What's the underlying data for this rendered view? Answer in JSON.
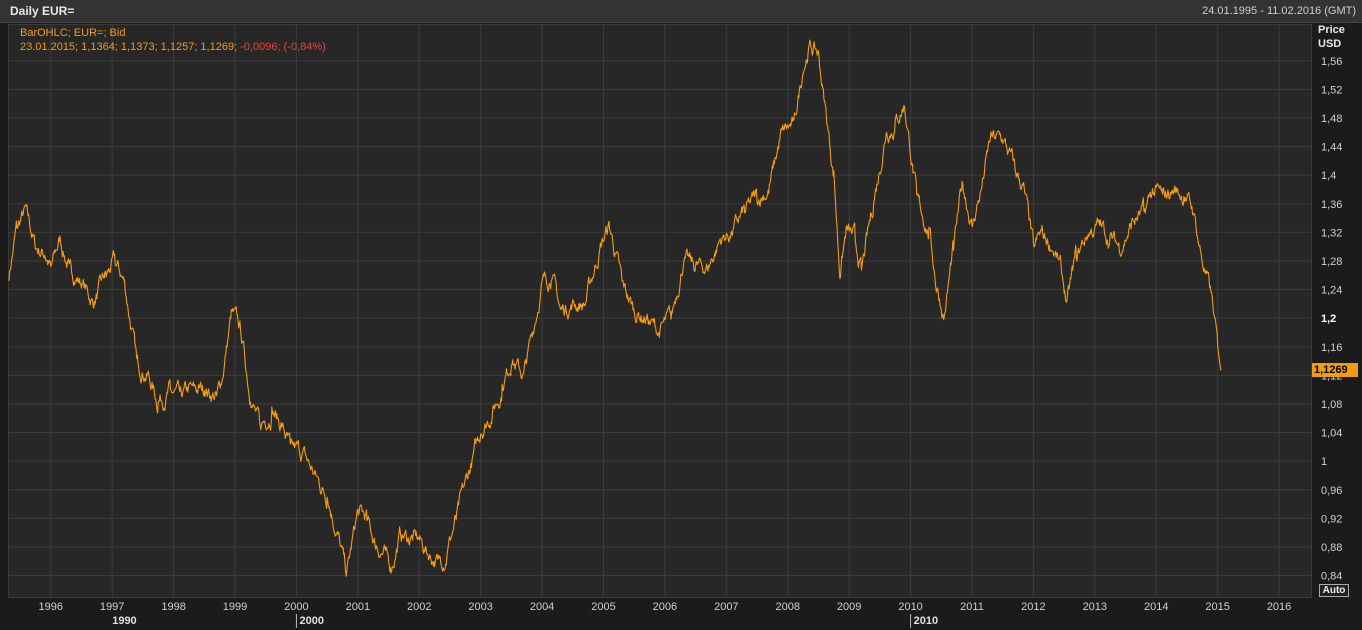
{
  "window": {
    "title": "Daily EUR=",
    "date_range": "24.01.1995 - 11.02.2016 (GMT)"
  },
  "legend": {
    "series_label": "BarOHLC; EUR=; Bid",
    "ohlc_values": "23.01.2015; 1,1364; 1,1373; 1,1257; 1,1269;",
    "change_values": "-0,0096; (-0,84%)"
  },
  "axis": {
    "y_title": "Price",
    "y_unit": "USD",
    "last_value": "1,1269",
    "auto_label": "Auto"
  },
  "colors": {
    "series": "#f39c12",
    "change_negative": "#e8453c",
    "background": "#1b1b1b",
    "plot_background": "#272727",
    "grid": "#3c3c3c"
  },
  "chart_data": {
    "type": "line",
    "title": "Daily EUR=",
    "ylabel": "Price USD",
    "ylim": [
      0.81,
      1.61
    ],
    "xlim": [
      1995.32,
      2016.52
    ],
    "grid": true,
    "y_ticks": [
      0.84,
      0.88,
      0.92,
      0.96,
      1.0,
      1.04,
      1.08,
      1.12,
      1.16,
      1.2,
      1.24,
      1.28,
      1.32,
      1.36,
      1.4,
      1.44,
      1.48,
      1.52,
      1.56
    ],
    "y_tick_labels": [
      "0,84",
      "0,88",
      "0,92",
      "0,96",
      "1",
      "1,04",
      "1,08",
      "1,12",
      "1,16",
      "1,2",
      "1,24",
      "1,28",
      "1,32",
      "1,36",
      "1,4",
      "1,44",
      "1,48",
      "1,52",
      "1,56"
    ],
    "x_ticks": [
      1996,
      1997,
      1998,
      1999,
      2000,
      2001,
      2002,
      2003,
      2004,
      2005,
      2006,
      2007,
      2008,
      2009,
      2010,
      2011,
      2012,
      2013,
      2014,
      2015,
      2016
    ],
    "x_tick_labels": [
      "1996",
      "1997",
      "1998",
      "1999",
      "2000",
      "2001",
      "2002",
      "2003",
      "2004",
      "2005",
      "2006",
      "2007",
      "2008",
      "2009",
      "2010",
      "2011",
      "2012",
      "2013",
      "2014",
      "2015",
      "2016"
    ],
    "decade_ticks": [
      1990,
      2000,
      2010
    ],
    "decade_labels": [
      "1990",
      "2000",
      "2010"
    ],
    "series": [
      {
        "x": [
          1995.32,
          1995.45,
          1995.6,
          1995.75,
          1995.9,
          1996.0,
          1996.15,
          1996.3,
          1996.5,
          1996.7,
          1996.9,
          1997.05,
          1997.2,
          1997.4,
          1997.6,
          1997.75,
          1997.95,
          1998.1,
          1998.3,
          1998.5,
          1998.7,
          1998.8,
          1998.95,
          1999.1,
          1999.25,
          1999.4,
          1999.6,
          1999.75,
          1999.9,
          2000.1,
          2000.3,
          2000.5,
          2000.7,
          2000.82,
          2001.0,
          2001.15,
          2001.3,
          2001.45,
          2001.55,
          2001.7,
          2001.85,
          2002.0,
          2002.15,
          2002.3,
          2002.45,
          2002.6,
          2002.8,
          2003.0,
          2003.2,
          2003.35,
          2003.5,
          2003.7,
          2003.85,
          2004.0,
          2004.15,
          2004.3,
          2004.5,
          2004.7,
          2004.95,
          2005.1,
          2005.3,
          2005.5,
          2005.7,
          2005.9,
          2006.1,
          2006.3,
          2006.5,
          2006.7,
          2006.9,
          2007.1,
          2007.3,
          2007.5,
          2007.7,
          2007.9,
          2008.1,
          2008.25,
          2008.35,
          2008.5,
          2008.6,
          2008.75,
          2008.85,
          2008.95,
          2009.1,
          2009.2,
          2009.4,
          2009.6,
          2009.75,
          2009.9,
          2010.1,
          2010.3,
          2010.43,
          2010.55,
          2010.7,
          2010.85,
          2011.0,
          2011.15,
          2011.3,
          2011.5,
          2011.7,
          2011.85,
          2012.0,
          2012.15,
          2012.3,
          2012.45,
          2012.55,
          2012.7,
          2012.9,
          2013.1,
          2013.25,
          2013.4,
          2013.6,
          2013.8,
          2013.95,
          2014.1,
          2014.3,
          2014.45,
          2014.6,
          2014.75,
          2014.9,
          2015.0,
          2015.06
        ],
        "y": [
          1.26,
          1.33,
          1.35,
          1.3,
          1.29,
          1.27,
          1.31,
          1.27,
          1.25,
          1.22,
          1.26,
          1.28,
          1.25,
          1.14,
          1.12,
          1.08,
          1.1,
          1.09,
          1.1,
          1.1,
          1.09,
          1.12,
          1.21,
          1.18,
          1.09,
          1.05,
          1.07,
          1.05,
          1.02,
          1.01,
          0.98,
          0.95,
          0.89,
          0.84,
          0.93,
          0.92,
          0.88,
          0.87,
          0.85,
          0.9,
          0.89,
          0.89,
          0.87,
          0.86,
          0.87,
          0.92,
          0.98,
          1.04,
          1.07,
          1.1,
          1.14,
          1.12,
          1.18,
          1.25,
          1.26,
          1.21,
          1.22,
          1.22,
          1.3,
          1.33,
          1.25,
          1.21,
          1.2,
          1.18,
          1.2,
          1.28,
          1.27,
          1.27,
          1.31,
          1.32,
          1.35,
          1.37,
          1.38,
          1.46,
          1.47,
          1.55,
          1.58,
          1.57,
          1.5,
          1.4,
          1.26,
          1.32,
          1.31,
          1.27,
          1.36,
          1.46,
          1.47,
          1.5,
          1.37,
          1.32,
          1.24,
          1.2,
          1.3,
          1.39,
          1.33,
          1.38,
          1.45,
          1.45,
          1.41,
          1.38,
          1.3,
          1.32,
          1.3,
          1.27,
          1.22,
          1.29,
          1.32,
          1.33,
          1.31,
          1.3,
          1.33,
          1.35,
          1.38,
          1.37,
          1.38,
          1.37,
          1.35,
          1.28,
          1.23,
          1.16,
          1.127
        ]
      }
    ]
  }
}
